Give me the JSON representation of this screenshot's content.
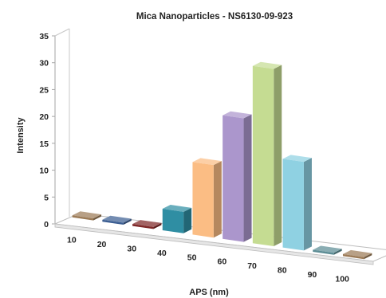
{
  "chart_data": {
    "type": "bar",
    "title": "Mica Nanoparticles - NS6130-09-923",
    "xlabel": "APS (nm)",
    "ylabel": "Intensity",
    "categories": [
      "10",
      "20",
      "30",
      "40",
      "50",
      "60",
      "70",
      "80",
      "90",
      "100"
    ],
    "values": [
      0.3,
      0.3,
      0.3,
      4,
      13.5,
      23,
      33,
      16.5,
      0.3,
      0.3
    ],
    "ylim": [
      0,
      35
    ],
    "yticks": [
      "0",
      "5",
      "10",
      "15",
      "20",
      "25",
      "30",
      "35"
    ],
    "grid": false,
    "legend": "none",
    "colors": [
      "#9c7b57",
      "#3d5f93",
      "#7e2727",
      "#2f8ea3",
      "#fbbd84",
      "#ab96cc",
      "#c5dc92",
      "#8fd1e2",
      "#5d8d95",
      "#9c7b57"
    ]
  }
}
